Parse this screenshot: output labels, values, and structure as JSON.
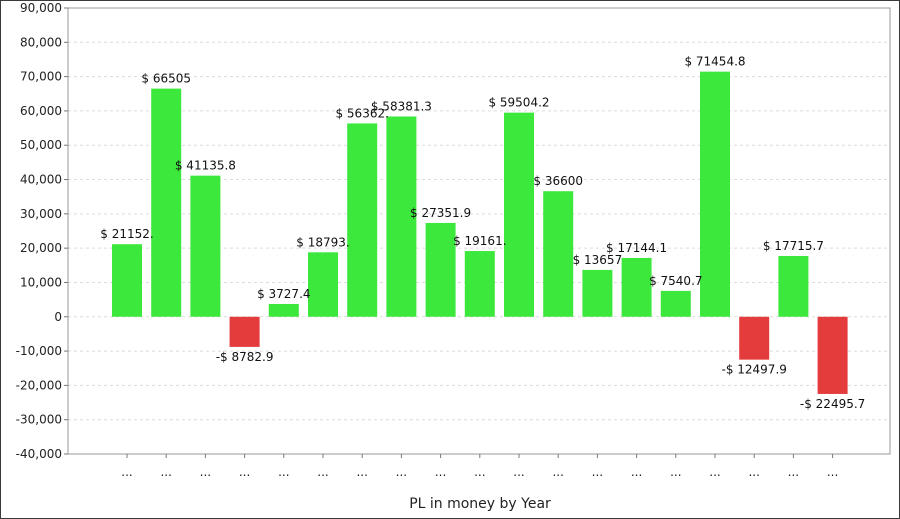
{
  "chart_data": {
    "type": "bar",
    "xlabel": "PL in money by Year",
    "ylabel": "",
    "ylim": [
      -40000,
      90000
    ],
    "ytick_step": 10000,
    "ytick_labels": [
      "90,000",
      "80,000",
      "70,000",
      "60,000",
      "50,000",
      "40,000",
      "30,000",
      "20,000",
      "10,000",
      "0",
      "-10,000",
      "-20,000",
      "-30,000",
      "-40,000"
    ],
    "grid": true,
    "legend": "none",
    "colors": {
      "positive": "#3de83d",
      "negative": "#e43c3c"
    },
    "categories": [
      "...",
      "...",
      "...",
      "...",
      "...",
      "...",
      "...",
      "...",
      "...",
      "...",
      "...",
      "...",
      "...",
      "...",
      "...",
      "...",
      "...",
      "...",
      "..."
    ],
    "values": [
      21152,
      66505,
      41135.8,
      -8782.9,
      3727.4,
      18793,
      56362,
      58381.3,
      27351.9,
      19161,
      59504.2,
      36600,
      13657,
      17144.1,
      7540.7,
      71454.8,
      -12497.9,
      17715.7,
      -22495.7
    ],
    "data_labels": [
      "$ 21152.",
      "$ 66505",
      "$ 41135.8",
      "-$ 8782.9",
      "$ 3727.4",
      "$ 18793.",
      "$ 56362.",
      "$ 58381.3",
      "$ 27351.9",
      "$ 19161.",
      "$ 59504.2",
      "$ 36600",
      "$ 13657",
      "$ 17144.1",
      "$ 7540.7",
      "$ 71454.8",
      "-$ 12497.9",
      "$ 17715.7",
      "-$ 22495.7"
    ]
  }
}
